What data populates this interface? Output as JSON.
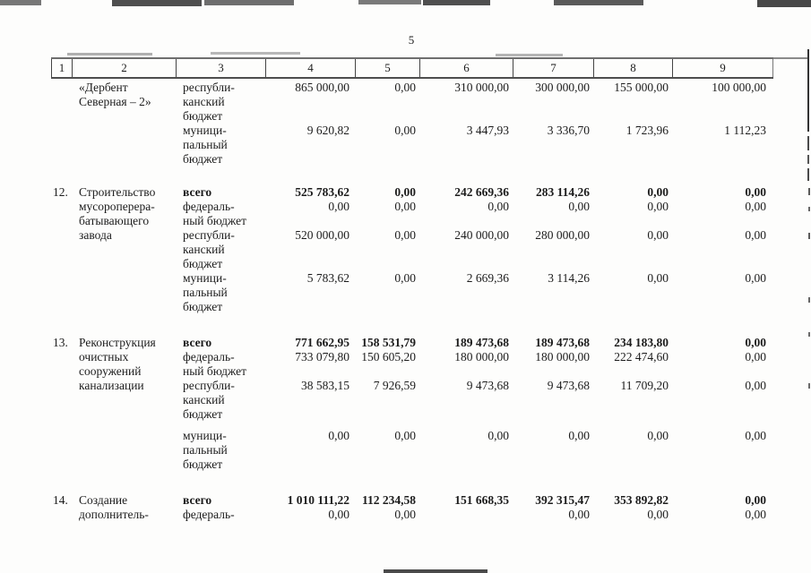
{
  "page": {
    "number": "5"
  },
  "table": {
    "header_columns": [
      "1",
      "2",
      "3",
      "4",
      "5",
      "6",
      "7",
      "8",
      "9"
    ],
    "groups": [
      {
        "num": "",
        "name_lines": [
          "«Дербент",
          "Северная – 2»"
        ],
        "entries": [
          {
            "bold": false,
            "label_lines": [
              "республи-",
              "канский",
              "бюджет"
            ],
            "values": [
              "865 000,00",
              "0,00",
              "310 000,00",
              "300 000,00",
              "155 000,00",
              "100 000,00"
            ]
          },
          {
            "bold": false,
            "label_lines": [
              "муници-",
              "пальный",
              "бюджет"
            ],
            "values": [
              "9 620,82",
              "0,00",
              "3 447,93",
              "3 336,70",
              "1 723,96",
              "1 112,23"
            ]
          }
        ]
      },
      {
        "num": "12.",
        "name_lines": [
          "Строительство",
          "мусороперера-",
          "батывающего",
          "завода"
        ],
        "entries": [
          {
            "bold": true,
            "label_lines": [
              "всего"
            ],
            "values": [
              "525 783,62",
              "0,00",
              "242 669,36",
              "283 114,26",
              "0,00",
              "0,00"
            ]
          },
          {
            "bold": false,
            "label_lines": [
              "федераль-",
              "ный бюджет"
            ],
            "values": [
              "0,00",
              "0,00",
              "0,00",
              "0,00",
              "0,00",
              "0,00"
            ]
          },
          {
            "bold": false,
            "label_lines": [
              "республи-",
              "канский",
              "бюджет"
            ],
            "values": [
              "520 000,00",
              "0,00",
              "240 000,00",
              "280 000,00",
              "0,00",
              "0,00"
            ]
          },
          {
            "bold": false,
            "label_lines": [
              "муници-",
              "пальный",
              "бюджет"
            ],
            "values": [
              "5 783,62",
              "0,00",
              "2 669,36",
              "3 114,26",
              "0,00",
              "0,00"
            ]
          }
        ]
      },
      {
        "num": "13.",
        "name_lines": [
          "Реконструкция",
          "очистных",
          "сооружений",
          "канализации"
        ],
        "entries": [
          {
            "bold": true,
            "label_lines": [
              "всего"
            ],
            "values": [
              "771 662,95",
              "158 531,79",
              "189 473,68",
              "189 473,68",
              "234 183,80",
              "0,00"
            ]
          },
          {
            "bold": false,
            "label_lines": [
              "федераль-",
              "ный бюджет"
            ],
            "values": [
              "733 079,80",
              "150 605,20",
              "180 000,00",
              "180 000,00",
              "222 474,60",
              "0,00"
            ]
          },
          {
            "bold": false,
            "label_lines": [
              "республи-",
              "канский",
              "бюджет"
            ],
            "values": [
              "38 583,15",
              "7 926,59",
              "9 473,68",
              "9 473,68",
              "11 709,20",
              "0,00"
            ]
          },
          {
            "bold": false,
            "label_lines": [
              "муници-",
              "пальный",
              "бюджет"
            ],
            "values": [
              "0,00",
              "0,00",
              "0,00",
              "0,00",
              "0,00",
              "0,00"
            ]
          }
        ]
      },
      {
        "num": "14.",
        "name_lines": [
          "Создание",
          "дополнитель-"
        ],
        "entries": [
          {
            "bold": true,
            "label_lines": [
              "всего"
            ],
            "values": [
              "1 010 111,22",
              "112 234,58",
              "151 668,35",
              "392 315,47",
              "353 892,82",
              "0,00"
            ]
          },
          {
            "bold": false,
            "label_lines": [
              "федераль-"
            ],
            "values": [
              "0,00",
              "0,00",
              "",
              "0,00",
              "0,00",
              "0,00"
            ]
          }
        ]
      }
    ]
  }
}
